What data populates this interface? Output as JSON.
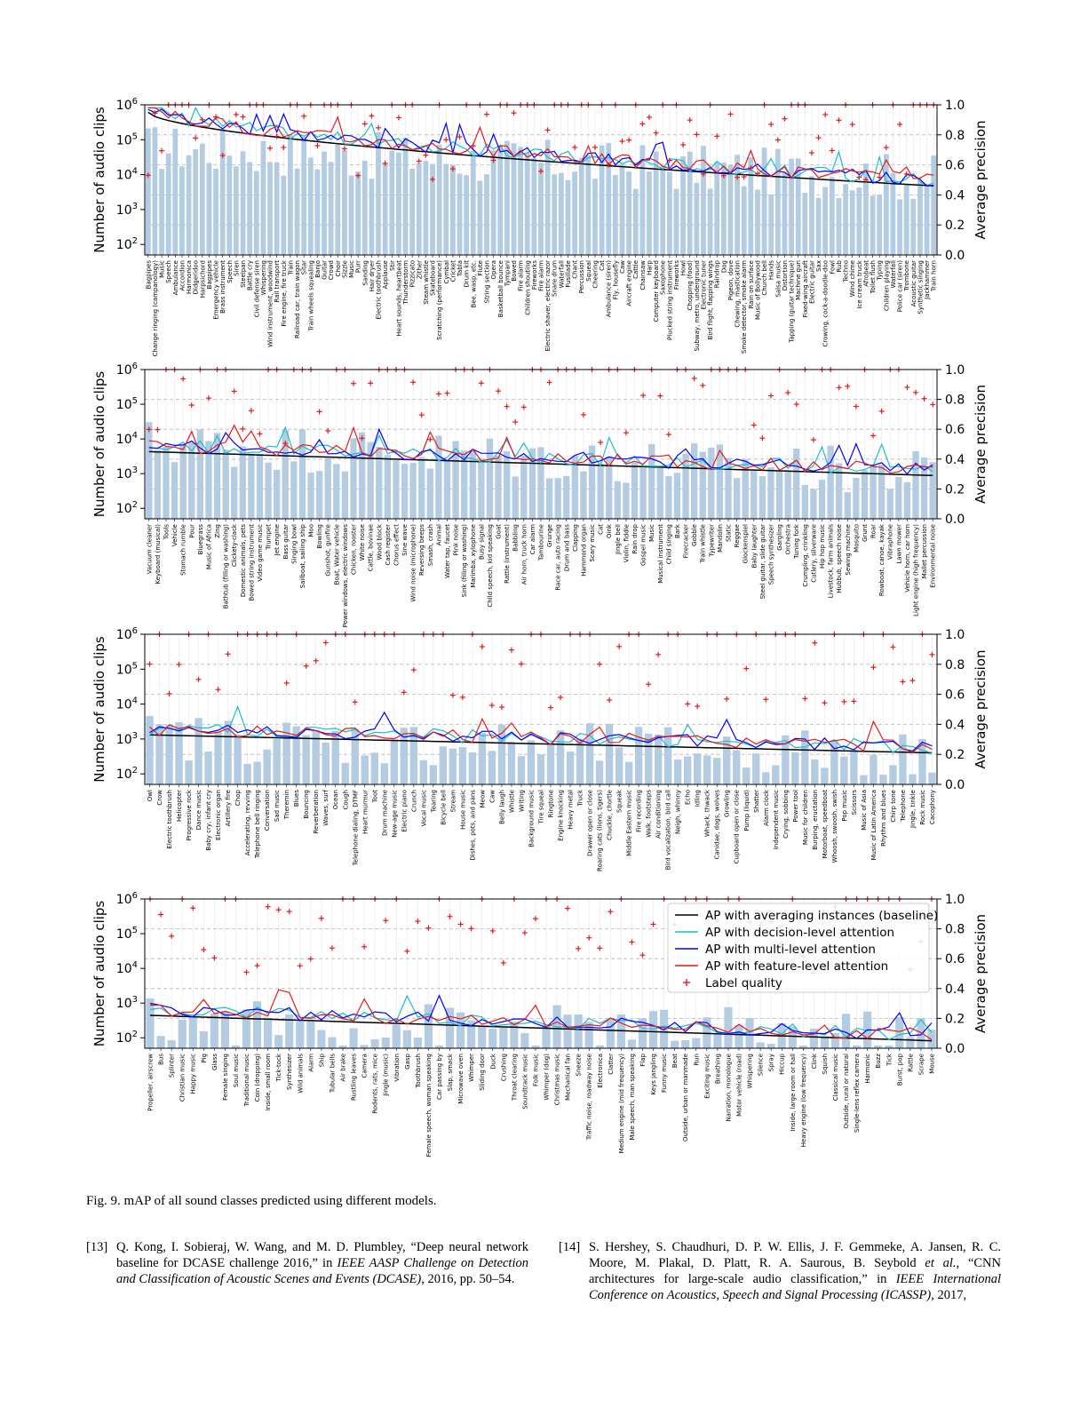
{
  "figure": {
    "caption_label": "Fig. 9.",
    "caption_text": "mAP of all sound classes predicted using different models."
  },
  "chart_data": {
    "type": "bar+line",
    "left_axis_label": "Number of audio clips",
    "right_axis_label": "Average precision",
    "left_axis_scale": "log",
    "left_axis_range": [
      50,
      1000000
    ],
    "left_tick_labels": [
      "10^2",
      "10^3",
      "10^4",
      "10^5",
      "10^6"
    ],
    "right_axis_range": [
      0.0,
      1.0
    ],
    "right_tick_labels": [
      "0.0",
      "0.2",
      "0.4",
      "0.6",
      "0.8",
      "1.0"
    ],
    "grid": "horizontal dashed at 0.2, 0.4, 0.6, 0.8; vertical light per class",
    "legend": {
      "placement": "top-right of bottom panel",
      "entries": [
        {
          "label": "AP with averaging instances (baseline)",
          "color": "#000000",
          "kind": "line"
        },
        {
          "label": "AP with decision-level attention",
          "color": "#17becf",
          "kind": "line"
        },
        {
          "label": "AP with multi-level attention",
          "color": "#0000ff",
          "kind": "line"
        },
        {
          "label": "AP with feature-level attention",
          "color": "#e41a1c",
          "kind": "line"
        },
        {
          "label": "Label quality",
          "color": "#e41a1c",
          "kind": "marker"
        }
      ]
    },
    "bar_color": "#b4cce2",
    "panels": [
      {
        "classes": [
          "Bagpipes",
          "Change ringing (campanology)",
          "Music",
          "Speech",
          "Ambulance",
          "Accordion",
          "Harmonica",
          "Didgeridoo",
          "Harpsichord",
          "Bagpipes",
          "Emergency vehicle",
          "Brass instrument",
          "Speech",
          "Siren",
          "Steelpan",
          "Battle cry",
          "Civil defense siren",
          "Whispering",
          "Wind instrument, woodwind",
          "Rail transport",
          "Fire engine, fire truck",
          "Train",
          "Railroad car, train wagon",
          "Sitar",
          "Train wheels squealing",
          "Banjo",
          "Guitar",
          "Crowd",
          "Choir",
          "Sizzle",
          "Music",
          "Purr",
          "Sanding",
          "Hair dryer",
          "Electric toothbrush",
          "Applause",
          "Stir",
          "Heart sounds, heartbeat",
          "Thunderstorm",
          "Pizzicato",
          "Zither",
          "Steam whistle",
          "Skateboard",
          "Scratching (performance)",
          "Cymbal",
          "Cricket",
          "Tabla",
          "Drum kit",
          "Bee, wasp, etc.",
          "Flute",
          "String section",
          "Opera",
          "Basketball bounce",
          "Tympani",
          "Bowed",
          "Fire alarm",
          "Children shouting",
          "Fireworks",
          "Fire alarm",
          "Electric shaver, electric razor",
          "Snare drum",
          "Waterfall",
          "Fusillade",
          "Chant",
          "Percussion",
          "Squeal",
          "Cheering",
          "Cat",
          "Ambulance (siren)",
          "Fly, housefly",
          "Caw",
          "Aircraft engine",
          "Cattle",
          "Chainsaw",
          "Harp",
          "Computer keyboard",
          "Saxophone",
          "Plucked string instrument",
          "Fireworks",
          "Howl",
          "Chopping (food)",
          "Subway, metro, underground",
          "Electronic tuner",
          "Bird flight, flapping wings",
          "Raindrop",
          "Dog",
          "Pigeon, dove",
          "Chewing, mastication",
          "Smoke detector, smoke alarm",
          "Rain on surface",
          "Music of Bollywood",
          "Church bell",
          "Hands",
          "Salsa music",
          "Distortion",
          "Tapping (guitar technique)",
          "Machine gun",
          "Fixed-wing aircraft",
          "Electric guitar",
          "Sax",
          "Crowing, cock-a-doodle-doo",
          "Fowl",
          "Rub",
          "Techno",
          "Wind chime",
          "Ice cream truck",
          "Afrobeat",
          "Toilet flush",
          "Typing",
          "Children playing",
          "Waterfall",
          "Police car (siren)",
          "Trombone",
          "Acoustic guitar",
          "Synthetic singing",
          "Jackhammer",
          "Train horn"
        ]
      },
      {
        "classes": [
          "Vacuum cleaner",
          "Keyboard (musical)",
          "Tools",
          "Vehicle",
          "Stomach rumble",
          "Pour",
          "Bluegrass",
          "Music of Africa",
          "Zing",
          "Bathtub (filling or washing)",
          "Clickety-clack",
          "Domestic animals, pets",
          "Bowed string instrument",
          "Video game music",
          "Trumpet",
          "Jet engine",
          "Bass guitar",
          "Singing bowl",
          "Sailboat, sailing ship",
          "Moo",
          "Bowling",
          "Gunshot, gunfire",
          "Boat, Water vehicle",
          "Power windows, electric windows",
          "Chicken, rooster",
          "White noise",
          "Cattle, bovinae",
          "Wood block",
          "Cash register",
          "Chorus effect",
          "Sine wave",
          "Wind noise (microphone)",
          "Reversing beeps",
          "Smash, crash",
          "Animal",
          "Water tap, faucet",
          "Pink noise",
          "Sink (filling or washing)",
          "Marimba, xylophone",
          "Busy signal",
          "Child speech, kid speaking",
          "Goat",
          "Rattle (instrument)",
          "Babbling",
          "Air horn, truck horn",
          "Car alarm",
          "Tambourine",
          "Grunge",
          "Race car, auto racing",
          "Drum and bass",
          "Clapping",
          "Hammond organ",
          "Scary music",
          "Cat",
          "Oink",
          "Jingle bell",
          "Violin, fiddle",
          "Rain drop",
          "Gospel music",
          "Music",
          "Musical instrument",
          "Child singing",
          "Bark",
          "Firecracker",
          "Gobble",
          "Train whistle",
          "Typewriter",
          "Mandolin",
          "Static",
          "Reggae",
          "Glockenspiel",
          "Baby laughter",
          "Steel guitar, slide guitar",
          "Speech synthesizer",
          "Gargling",
          "Orchestra",
          "Tuning fork",
          "Crumpling, crinkling",
          "Cutlery, silverware",
          "Hip hop music",
          "Livestock, farm animals",
          "Hubbub, speech noise",
          "Sewing machine",
          "Mosquito",
          "Grunt",
          "Roar",
          "Rowboat, canoe, kayak",
          "Vibraphone",
          "Lawn mower",
          "Vehicle horn, car horn",
          "Light engine (high frequency)",
          "Mallet percussion",
          "Environmental noise"
        ]
      },
      {
        "classes": [
          "Owl",
          "Crow",
          "Electric toothbrush",
          "Helicopter",
          "Progressive rock",
          "Dance music",
          "Baby cry, infant cry",
          "Electronic organ",
          "Artillery fire",
          "Chop",
          "Accelerating, revving",
          "Telephone bell ringing",
          "Conversation",
          "Sad music",
          "Theremin",
          "Blues",
          "Bouncing",
          "Reverberation",
          "Waves, surf",
          "Ocean",
          "Cough",
          "Telephone dialing, DTMF",
          "Heart murmur",
          "Toot",
          "Drum machine",
          "New-age music",
          "Electric piano",
          "Crunch",
          "Vocal music",
          "Tearing",
          "Bicycle bell",
          "Stream",
          "House music",
          "Dishes, pots, and pans",
          "Meow",
          "Caw",
          "Belly laugh",
          "Whistle",
          "Writing",
          "Background music",
          "Tire squeal",
          "Ringtone",
          "Engine knocking",
          "Heavy metal",
          "Truck",
          "Drawer open or close",
          "Roaring cats (lions, tigers)",
          "Chuckle, chortle",
          "Squeak",
          "Middle Eastern music",
          "Fire recording",
          "Walk, footsteps",
          "Air conditioning",
          "Bird vocalization, bird call",
          "Neigh, whinny",
          "Echo",
          "Idling",
          "Whack, thwack",
          "Canidae, dogs, wolves",
          "Growling",
          "Cupboard open or close",
          "Pump (liquid)",
          "Shatter",
          "Alarm clock",
          "Independent music",
          "Crying, sobbing",
          "Power tool",
          "Music for children",
          "Burping, eructation",
          "Motorboat, speedboat",
          "Whoosh, swoosh, swish",
          "Pop music",
          "Scissors",
          "Music of Asia",
          "Music of Latin America",
          "Rhythm and blues",
          "Chirp tone",
          "Telephone",
          "Jingle, tinkle",
          "Rock music",
          "Cacophony"
        ]
      },
      {
        "classes": [
          "Propeller, airscrew",
          "Bus",
          "Splinter",
          "Christian music",
          "Happy music",
          "Pig",
          "Glass",
          "Female singing",
          "Soul music",
          "Traditional music",
          "Coin (dropping)",
          "Inside, small room",
          "Tick-tock",
          "Synthesizer",
          "Wild animals",
          "Alarm",
          "Ship",
          "Tubular bells",
          "Air brake",
          "Rustling leaves",
          "Camera",
          "Rodents, rats, mice",
          "Jingle (music)",
          "Vibration",
          "Gasp",
          "Toothbrush",
          "Female speech, woman speaking",
          "Car passing by",
          "Slap, smack",
          "Microwave oven",
          "Whimper",
          "Sliding door",
          "Duck",
          "Crushing",
          "Throat clearing",
          "Soundtrack music",
          "Folk music",
          "Whimper (dog)",
          "Christmas music",
          "Mechanical fan",
          "Sneeze",
          "Traffic noise, roadway noise",
          "Electronica",
          "Clatter",
          "Medium engine (mid frequency)",
          "Male speech, man speaking",
          "Flap",
          "Keys jangling",
          "Funny music",
          "Beat",
          "Outside, urban or manmade",
          "Run",
          "Exciting music",
          "Breathing",
          "Narration, monologue",
          "Motor vehicle (road)",
          "Whispering",
          "Silence",
          "Spray",
          "Hiccup",
          "Inside, large room or hall",
          "Heavy engine (low frequency)",
          "Clink",
          "Squish",
          "Classical music",
          "Outside, rural or natural",
          "Single-lens reflex camera",
          "Harmonic",
          "Buzz",
          "Tick",
          "Burst, pop",
          "Rattle",
          "Scrape",
          "Mouse"
        ]
      }
    ]
  },
  "references": [
    {
      "num": "[13]",
      "pre": "Q. Kong, I. Sobieraj, W. Wang, and M. D. Plumbley, “Deep neural network baseline for DCASE challenge 2016,” in ",
      "venue": "IEEE AASP Challenge on Detection and Classification of Acoustic Scenes and Events (DCASE)",
      "post": ", 2016, pp. 50–54."
    },
    {
      "num": "[14]",
      "pre": "S. Hershey, S. Chaudhuri, D. P. W. Ellis, J. F. Gemmeke, A. Jansen, R. C. Moore, M. Plakal, D. Platt, R. A. Saurous, B. Seybold ",
      "etal": "et al.",
      "mid": ", “CNN architectures for large-scale audio classification,” in ",
      "venue": "IEEE International Conference on Acoustics, Speech and Signal Processing (ICASSP)",
      "post": ", 2017,"
    }
  ]
}
